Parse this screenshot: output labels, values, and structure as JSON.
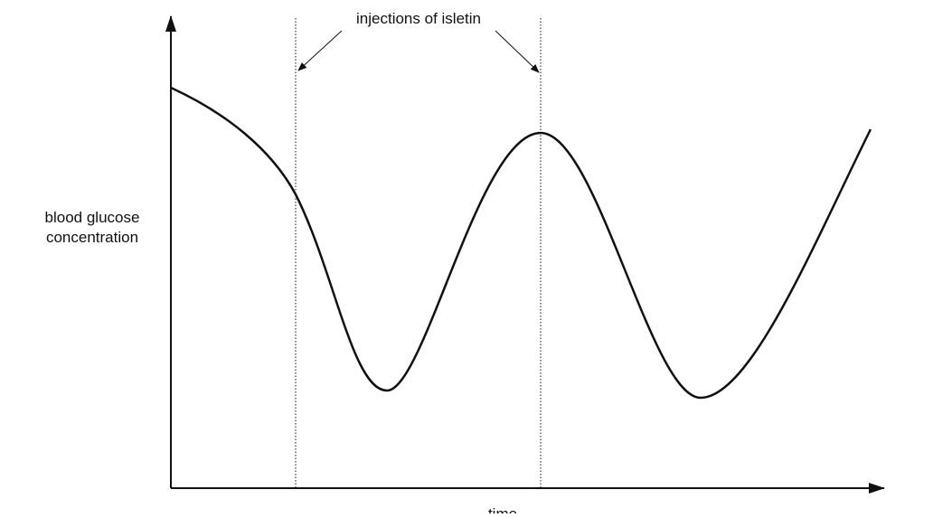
{
  "annotation": "injections of isletin",
  "y_axis_label": [
    "blood glucose",
    "concentration"
  ],
  "x_axis_label": "time"
}
